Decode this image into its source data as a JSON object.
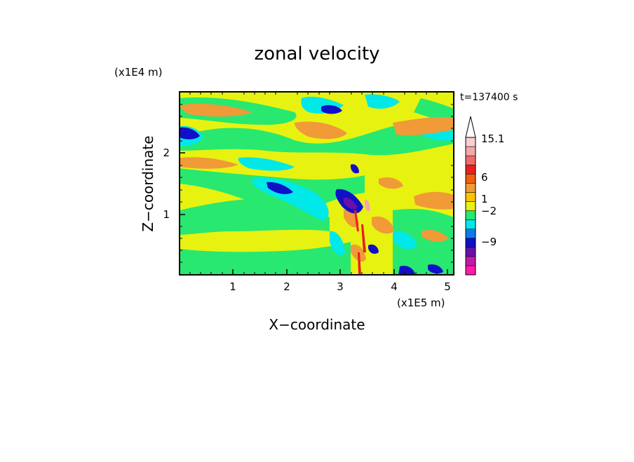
{
  "chart_data": {
    "type": "heatmap",
    "title": "zonal velocity",
    "xlabel": "X−coordinate",
    "ylabel": "Z−coordinate",
    "x_scale_label": "(x1E5 m)",
    "y_scale_label": "(x1E4 m)",
    "time_label": "t=137400 s",
    "xlim": [
      0,
      5.12
    ],
    "ylim": [
      0,
      2.97
    ],
    "x_ticks": [
      "1",
      "2",
      "3",
      "4",
      "5"
    ],
    "y_ticks": [
      "1",
      "2"
    ],
    "colorbar_labels": [
      "15.1",
      "6",
      "1",
      "−2",
      "−9"
    ],
    "colorbar_colors": [
      "#ff1aa8",
      "#c21aa8",
      "#6b0fa8",
      "#1010c8",
      "#0e7ae8",
      "#00e8e8",
      "#28e870",
      "#e8f210",
      "#ffc400",
      "#f09a38",
      "#f06010",
      "#e82020",
      "#f06a6a",
      "#f4a8a8",
      "#f8cece"
    ],
    "colors": {
      "deep_magenta": "#ff1aa8",
      "magenta": "#c21aa8",
      "purple": "#6b0fa8",
      "blue": "#1010c8",
      "cyan": "#00e8e8",
      "green": "#28e870",
      "yellow": "#e8f210",
      "orange": "#f09a38",
      "red": "#e82020",
      "pink": "#f4a8a8"
    }
  }
}
